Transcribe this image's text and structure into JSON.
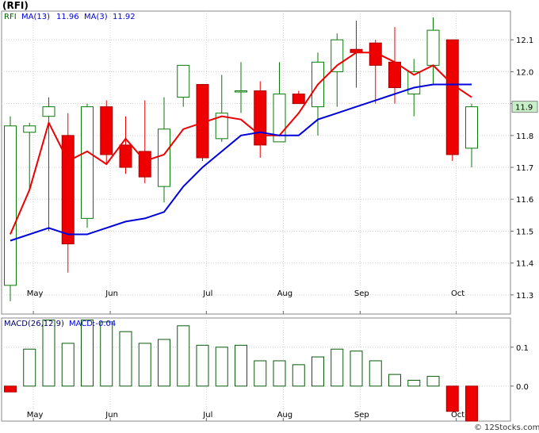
{
  "chart_data": [
    {
      "type": "candlestick",
      "title": "(RFI)",
      "legend": {
        "symbol": "RFI",
        "ma13_label": "MA(13)",
        "ma13_value": "11.96",
        "ma3_label": "MA(3)",
        "ma3_value": "11.92"
      },
      "last_price_label": "11.9",
      "last_price": 11.89,
      "ylim": [
        11.24,
        12.19
      ],
      "y_ticks": [
        {
          "v": 11.3,
          "label": "11.3"
        },
        {
          "v": 11.4,
          "label": "11.4"
        },
        {
          "v": 11.5,
          "label": "11.5"
        },
        {
          "v": 11.6,
          "label": "11.6"
        },
        {
          "v": 11.7,
          "label": "11.7"
        },
        {
          "v": 11.8,
          "label": "11.8"
        },
        {
          "v": 11.9,
          "label": "11.9"
        },
        {
          "v": 12.0,
          "label": "12.0"
        },
        {
          "v": 12.1,
          "label": "12.1"
        }
      ],
      "x_ticks": [
        {
          "i": 1.2,
          "label": "May"
        },
        {
          "i": 5.2,
          "label": "Jun"
        },
        {
          "i": 10.2,
          "label": "Jul"
        },
        {
          "i": 14.2,
          "label": "Aug"
        },
        {
          "i": 18.2,
          "label": "Sep"
        },
        {
          "i": 23.2,
          "label": "Oct"
        }
      ],
      "candles": [
        {
          "o": 11.33,
          "h": 11.86,
          "l": 11.28,
          "c": 11.83
        },
        {
          "o": 11.81,
          "h": 11.84,
          "l": 11.63,
          "c": 11.83
        },
        {
          "o": 11.86,
          "h": 11.92,
          "l": 11.5,
          "c": 11.89
        },
        {
          "o": 11.8,
          "h": 11.87,
          "l": 11.37,
          "c": 11.46
        },
        {
          "o": 11.54,
          "h": 11.9,
          "l": 11.51,
          "c": 11.89
        },
        {
          "o": 11.89,
          "h": 11.91,
          "l": 11.71,
          "c": 11.74
        },
        {
          "o": 11.77,
          "h": 11.86,
          "l": 11.68,
          "c": 11.7
        },
        {
          "o": 11.75,
          "h": 11.91,
          "l": 11.65,
          "c": 11.67
        },
        {
          "o": 11.64,
          "h": 11.92,
          "l": 11.59,
          "c": 11.82
        },
        {
          "o": 11.92,
          "h": 12.02,
          "l": 11.89,
          "c": 12.02
        },
        {
          "o": 11.96,
          "h": 11.96,
          "l": 11.72,
          "c": 11.73
        },
        {
          "o": 11.79,
          "h": 11.99,
          "l": 11.78,
          "c": 11.87
        },
        {
          "o": 11.94,
          "h": 12.03,
          "l": 11.87,
          "c": 11.94
        },
        {
          "o": 11.94,
          "h": 11.97,
          "l": 11.73,
          "c": 11.77
        },
        {
          "o": 11.78,
          "h": 12.03,
          "l": 11.78,
          "c": 11.93
        },
        {
          "o": 11.93,
          "h": 11.94,
          "l": 11.9,
          "c": 11.9
        },
        {
          "o": 11.89,
          "h": 12.06,
          "l": 11.8,
          "c": 12.03
        },
        {
          "o": 12.0,
          "h": 12.12,
          "l": 11.89,
          "c": 12.1
        },
        {
          "o": 12.07,
          "h": 12.16,
          "l": 11.95,
          "c": 12.06
        },
        {
          "o": 12.09,
          "h": 12.1,
          "l": 11.9,
          "c": 12.02
        },
        {
          "o": 12.03,
          "h": 12.14,
          "l": 11.9,
          "c": 11.95
        },
        {
          "o": 11.93,
          "h": 12.04,
          "l": 11.86,
          "c": 12.0
        },
        {
          "o": 12.02,
          "h": 12.17,
          "l": 11.96,
          "c": 12.13
        },
        {
          "o": 12.1,
          "h": 12.1,
          "l": 11.72,
          "c": 11.74
        },
        {
          "o": 11.76,
          "h": 11.9,
          "l": 11.7,
          "c": 11.89
        }
      ],
      "ma13": [
        {
          "i": 0,
          "v": 11.47
        },
        {
          "i": 2,
          "v": 11.51
        },
        {
          "i": 3,
          "v": 11.49
        },
        {
          "i": 4,
          "v": 11.49
        },
        {
          "i": 5,
          "v": 11.51
        },
        {
          "i": 6,
          "v": 11.53
        },
        {
          "i": 7,
          "v": 11.54
        },
        {
          "i": 8,
          "v": 11.56
        },
        {
          "i": 9,
          "v": 11.64
        },
        {
          "i": 10,
          "v": 11.7
        },
        {
          "i": 11,
          "v": 11.75
        },
        {
          "i": 12,
          "v": 11.8
        },
        {
          "i": 13,
          "v": 11.81
        },
        {
          "i": 14,
          "v": 11.8
        },
        {
          "i": 15,
          "v": 11.8
        },
        {
          "i": 16,
          "v": 11.85
        },
        {
          "i": 17,
          "v": 11.87
        },
        {
          "i": 18,
          "v": 11.89
        },
        {
          "i": 19,
          "v": 11.91
        },
        {
          "i": 20,
          "v": 11.93
        },
        {
          "i": 21,
          "v": 11.95
        },
        {
          "i": 22,
          "v": 11.96
        },
        {
          "i": 23,
          "v": 11.96
        },
        {
          "i": 24,
          "v": 11.96
        }
      ],
      "ma3": [
        {
          "i": 0,
          "v": 11.49
        },
        {
          "i": 1,
          "v": 11.63
        },
        {
          "i": 2,
          "v": 11.84
        },
        {
          "i": 3,
          "v": 11.72
        },
        {
          "i": 4,
          "v": 11.75
        },
        {
          "i": 5,
          "v": 11.71
        },
        {
          "i": 6,
          "v": 11.79
        },
        {
          "i": 7,
          "v": 11.72
        },
        {
          "i": 8,
          "v": 11.74
        },
        {
          "i": 9,
          "v": 11.82
        },
        {
          "i": 10,
          "v": 11.84
        },
        {
          "i": 11,
          "v": 11.86
        },
        {
          "i": 12,
          "v": 11.85
        },
        {
          "i": 13,
          "v": 11.8
        },
        {
          "i": 14,
          "v": 11.8
        },
        {
          "i": 15,
          "v": 11.87
        },
        {
          "i": 16,
          "v": 11.96
        },
        {
          "i": 17,
          "v": 12.02
        },
        {
          "i": 18,
          "v": 12.06
        },
        {
          "i": 19,
          "v": 12.06
        },
        {
          "i": 20,
          "v": 12.03
        },
        {
          "i": 21,
          "v": 11.99
        },
        {
          "i": 22,
          "v": 12.02
        },
        {
          "i": 23,
          "v": 11.96
        },
        {
          "i": 24,
          "v": 11.92
        }
      ],
      "colors": {
        "up": "#0a7a0a",
        "down": "#ee0000",
        "ma13": "#0000dd",
        "ma3": "#ee0000"
      }
    },
    {
      "type": "bar",
      "title": "MACD(26,12,9)",
      "legend": {
        "label": "MACD(26,12,9)",
        "value_label": "MACD:-0.04"
      },
      "ylim": [
        -0.09,
        0.175
      ],
      "y_ticks": [
        {
          "v": 0.1,
          "label": "0.1"
        },
        {
          "v": 0.0,
          "label": "0.0"
        }
      ],
      "x_ticks": [
        {
          "i": 1.2,
          "label": "May"
        },
        {
          "i": 5.2,
          "label": "Jun"
        },
        {
          "i": 10.2,
          "label": "Jul"
        },
        {
          "i": 14.2,
          "label": "Aug"
        },
        {
          "i": 18.2,
          "label": "Sep"
        },
        {
          "i": 23.2,
          "label": "Oct"
        }
      ],
      "values": [
        -0.015,
        0.095,
        0.17,
        0.11,
        0.17,
        0.165,
        0.14,
        0.11,
        0.12,
        0.155,
        0.105,
        0.1,
        0.105,
        0.065,
        0.065,
        0.055,
        0.075,
        0.095,
        0.09,
        0.065,
        0.03,
        0.015,
        0.025,
        -0.065,
        -0.09
      ],
      "colors": {
        "positive": "#0a5a0a",
        "negative": "#ee0000"
      }
    }
  ],
  "watermark": "© 12Stocks.com"
}
